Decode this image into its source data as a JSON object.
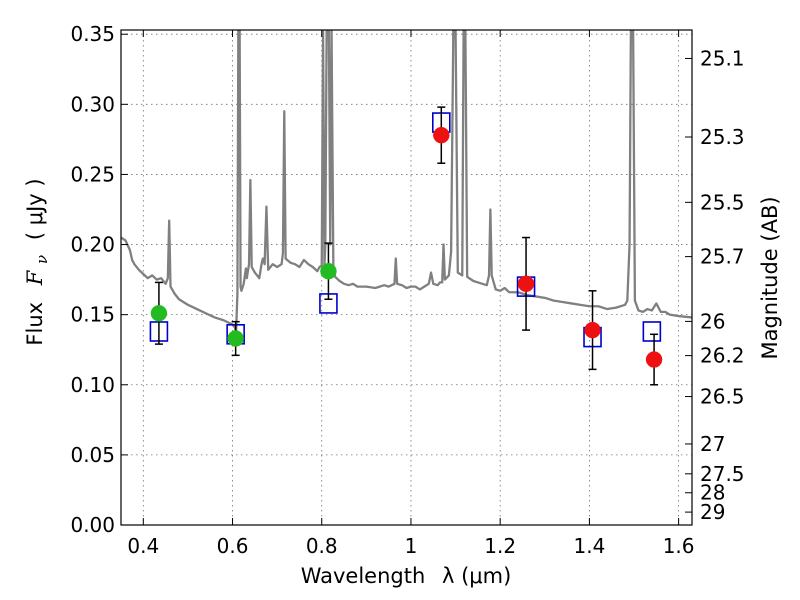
{
  "chart_data": {
    "type": "scatter",
    "xlabel_text": "Wavelength",
    "xlabel_math": "λ (μm)",
    "ylabel_text": "Flux",
    "ylabel_math": "F",
    "ylabel_sub": "ν",
    "ylabel_paren": "( μJy )",
    "y2label": "Magnitude (AB)",
    "xlim": [
      0.35,
      1.63
    ],
    "ylim": [
      0.0,
      0.353
    ],
    "grid": true,
    "x_ticks": [
      0.4,
      0.6,
      0.8,
      1.0,
      1.2,
      1.4,
      1.6
    ],
    "x_tick_labels": [
      "0.4",
      "0.6",
      "0.8",
      "1",
      "1.2",
      "1.4",
      "1.6"
    ],
    "y_ticks": [
      0.0,
      0.05,
      0.1,
      0.15,
      0.2,
      0.25,
      0.3,
      0.35
    ],
    "y_tick_labels": [
      "0.00",
      "0.05",
      "0.10",
      "0.15",
      "0.20",
      "0.25",
      "0.30",
      "0.35"
    ],
    "y2_ticks": [
      {
        "label": "25.1",
        "flux": 0.3327
      },
      {
        "label": "25.3",
        "flux": 0.2767
      },
      {
        "label": "25.5",
        "flux": 0.2301
      },
      {
        "label": "25.7",
        "flux": 0.1914
      },
      {
        "label": "26",
        "flux": 0.1452
      },
      {
        "label": "26.2",
        "flux": 0.1208
      },
      {
        "label": "26.5",
        "flux": 0.0916
      },
      {
        "label": "27",
        "flux": 0.0578
      },
      {
        "label": "27.5",
        "flux": 0.0365
      },
      {
        "label": "28",
        "flux": 0.023
      },
      {
        "label": "29",
        "flux": 0.0092
      }
    ],
    "colors": {
      "spectrum": "#808080",
      "model_box": "#0000cc",
      "obs_green": "#22bb22",
      "obs_red": "#ee1111",
      "errorbar": "#000000"
    },
    "series": [
      {
        "name": "",
        "kind": "spectrum",
        "points": [
          [
            0.35,
            0.205
          ],
          [
            0.36,
            0.203
          ],
          [
            0.37,
            0.196
          ],
          [
            0.375,
            0.189
          ],
          [
            0.38,
            0.186
          ],
          [
            0.39,
            0.182
          ],
          [
            0.4,
            0.179
          ],
          [
            0.41,
            0.176
          ],
          [
            0.42,
            0.178
          ],
          [
            0.43,
            0.175
          ],
          [
            0.44,
            0.176
          ],
          [
            0.45,
            0.172
          ],
          [
            0.455,
            0.176
          ],
          [
            0.458,
            0.217
          ],
          [
            0.461,
            0.17
          ],
          [
            0.47,
            0.165
          ],
          [
            0.48,
            0.161
          ],
          [
            0.5,
            0.157
          ],
          [
            0.52,
            0.154
          ],
          [
            0.54,
            0.151
          ],
          [
            0.56,
            0.148
          ],
          [
            0.58,
            0.146
          ],
          [
            0.6,
            0.143
          ],
          [
            0.605,
            0.141
          ],
          [
            0.608,
            0.138
          ],
          [
            0.611,
            0.165
          ],
          [
            0.613,
            0.355
          ],
          [
            0.616,
            0.355
          ],
          [
            0.618,
            0.17
          ],
          [
            0.62,
            0.167
          ],
          [
            0.625,
            0.172
          ],
          [
            0.63,
            0.183
          ],
          [
            0.632,
            0.176
          ],
          [
            0.637,
            0.186
          ],
          [
            0.64,
            0.246
          ],
          [
            0.643,
            0.184
          ],
          [
            0.65,
            0.18
          ],
          [
            0.66,
            0.176
          ],
          [
            0.665,
            0.186
          ],
          [
            0.668,
            0.19
          ],
          [
            0.672,
            0.186
          ],
          [
            0.676,
            0.227
          ],
          [
            0.68,
            0.182
          ],
          [
            0.69,
            0.186
          ],
          [
            0.7,
            0.184
          ],
          [
            0.71,
            0.186
          ],
          [
            0.713,
            0.194
          ],
          [
            0.716,
            0.295
          ],
          [
            0.719,
            0.19
          ],
          [
            0.73,
            0.187
          ],
          [
            0.74,
            0.186
          ],
          [
            0.75,
            0.184
          ],
          [
            0.76,
            0.189
          ],
          [
            0.77,
            0.186
          ],
          [
            0.78,
            0.184
          ],
          [
            0.79,
            0.181
          ],
          [
            0.795,
            0.184
          ],
          [
            0.8,
            0.185
          ],
          [
            0.803,
            0.355
          ],
          [
            0.806,
            0.185
          ],
          [
            0.808,
            0.2
          ],
          [
            0.811,
            0.355
          ],
          [
            0.816,
            0.355
          ],
          [
            0.819,
            0.2
          ],
          [
            0.822,
            0.355
          ],
          [
            0.826,
            0.185
          ],
          [
            0.83,
            0.177
          ],
          [
            0.84,
            0.174
          ],
          [
            0.85,
            0.172
          ],
          [
            0.86,
            0.171
          ],
          [
            0.87,
            0.172
          ],
          [
            0.88,
            0.17
          ],
          [
            0.9,
            0.17
          ],
          [
            0.92,
            0.169
          ],
          [
            0.94,
            0.171
          ],
          [
            0.95,
            0.17
          ],
          [
            0.963,
            0.172
          ],
          [
            0.966,
            0.19
          ],
          [
            0.969,
            0.172
          ],
          [
            0.98,
            0.171
          ],
          [
            0.99,
            0.169
          ],
          [
            1.0,
            0.17
          ],
          [
            1.01,
            0.17
          ],
          [
            1.02,
            0.168
          ],
          [
            1.03,
            0.17
          ],
          [
            1.04,
            0.172
          ],
          [
            1.045,
            0.18
          ],
          [
            1.05,
            0.172
          ],
          [
            1.06,
            0.171
          ],
          [
            1.065,
            0.173
          ],
          [
            1.07,
            0.173
          ],
          [
            1.073,
            0.2
          ],
          [
            1.076,
            0.175
          ],
          [
            1.085,
            0.178
          ],
          [
            1.09,
            0.195
          ],
          [
            1.095,
            0.355
          ],
          [
            1.1,
            0.355
          ],
          [
            1.105,
            0.18
          ],
          [
            1.115,
            0.178
          ],
          [
            1.118,
            0.355
          ],
          [
            1.122,
            0.355
          ],
          [
            1.126,
            0.177
          ],
          [
            1.14,
            0.174
          ],
          [
            1.16,
            0.172
          ],
          [
            1.17,
            0.171
          ],
          [
            1.175,
            0.178
          ],
          [
            1.178,
            0.225
          ],
          [
            1.181,
            0.178
          ],
          [
            1.19,
            0.168
          ],
          [
            1.2,
            0.167
          ],
          [
            1.21,
            0.169
          ],
          [
            1.22,
            0.166
          ],
          [
            1.24,
            0.166
          ],
          [
            1.26,
            0.164
          ],
          [
            1.28,
            0.163
          ],
          [
            1.3,
            0.162
          ],
          [
            1.32,
            0.16
          ],
          [
            1.34,
            0.159
          ],
          [
            1.36,
            0.158
          ],
          [
            1.38,
            0.157
          ],
          [
            1.4,
            0.156
          ],
          [
            1.42,
            0.156
          ],
          [
            1.44,
            0.154
          ],
          [
            1.46,
            0.155
          ],
          [
            1.48,
            0.157
          ],
          [
            1.485,
            0.16
          ],
          [
            1.49,
            0.2
          ],
          [
            1.493,
            0.355
          ],
          [
            1.498,
            0.355
          ],
          [
            1.502,
            0.16
          ],
          [
            1.51,
            0.153
          ],
          [
            1.52,
            0.152
          ],
          [
            1.53,
            0.154
          ],
          [
            1.54,
            0.153
          ],
          [
            1.55,
            0.158
          ],
          [
            1.56,
            0.152
          ],
          [
            1.57,
            0.152
          ],
          [
            1.58,
            0.15
          ],
          [
            1.6,
            0.149
          ],
          [
            1.63,
            0.148
          ]
        ]
      },
      {
        "name": "",
        "kind": "model_boxes",
        "x": [
          0.435,
          0.607,
          0.815,
          1.068,
          1.258,
          1.407,
          1.54
        ],
        "y": [
          0.138,
          0.136,
          0.158,
          0.287,
          0.17,
          0.134,
          0.138
        ]
      },
      {
        "name": "",
        "kind": "obs_green",
        "x": [
          0.435,
          0.607,
          0.815
        ],
        "y": [
          0.151,
          0.133,
          0.181
        ],
        "yerr": [
          0.022,
          0.012,
          0.02
        ]
      },
      {
        "name": "",
        "kind": "obs_red",
        "x": [
          1.068,
          1.258,
          1.407,
          1.545
        ],
        "y": [
          0.278,
          0.172,
          0.139,
          0.118
        ],
        "yerr": [
          0.02,
          0.033,
          0.028,
          0.018
        ]
      }
    ]
  }
}
